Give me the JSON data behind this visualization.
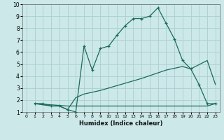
{
  "xlabel": "Humidex (Indice chaleur)",
  "xlim": [
    -0.5,
    23.5
  ],
  "ylim": [
    1,
    10
  ],
  "xticks": [
    0,
    1,
    2,
    3,
    4,
    5,
    6,
    7,
    8,
    9,
    10,
    11,
    12,
    13,
    14,
    15,
    16,
    17,
    18,
    19,
    20,
    21,
    22,
    23
  ],
  "yticks": [
    1,
    2,
    3,
    4,
    5,
    6,
    7,
    8,
    9,
    10
  ],
  "bg_color": "#cce8e8",
  "grid_color": "#aad0d0",
  "line_color": "#1a6b5a",
  "line1": {
    "x": [
      1,
      2,
      3,
      4,
      5,
      6,
      7,
      8,
      9,
      10,
      11,
      12,
      13,
      14,
      15,
      16,
      17,
      18,
      19,
      20,
      21,
      22,
      23
    ],
    "y": [
      1.7,
      1.7,
      1.5,
      1.5,
      1.2,
      1.0,
      6.5,
      4.5,
      6.3,
      6.5,
      7.4,
      8.2,
      8.8,
      8.8,
      9.0,
      9.7,
      8.4,
      7.1,
      5.3,
      4.6,
      3.3,
      1.7,
      1.7
    ]
  },
  "line2": {
    "x": [
      1,
      3,
      4,
      5,
      6,
      7,
      9,
      11,
      14,
      17,
      19,
      20,
      22,
      23
    ],
    "y": [
      1.7,
      1.5,
      1.5,
      1.2,
      2.2,
      2.5,
      2.8,
      3.2,
      3.8,
      4.5,
      4.8,
      4.6,
      5.3,
      3.3
    ]
  },
  "line3": {
    "x": [
      1,
      5,
      10,
      15,
      17,
      22,
      23
    ],
    "y": [
      1.7,
      1.5,
      1.5,
      1.5,
      1.5,
      1.5,
      1.7
    ]
  }
}
